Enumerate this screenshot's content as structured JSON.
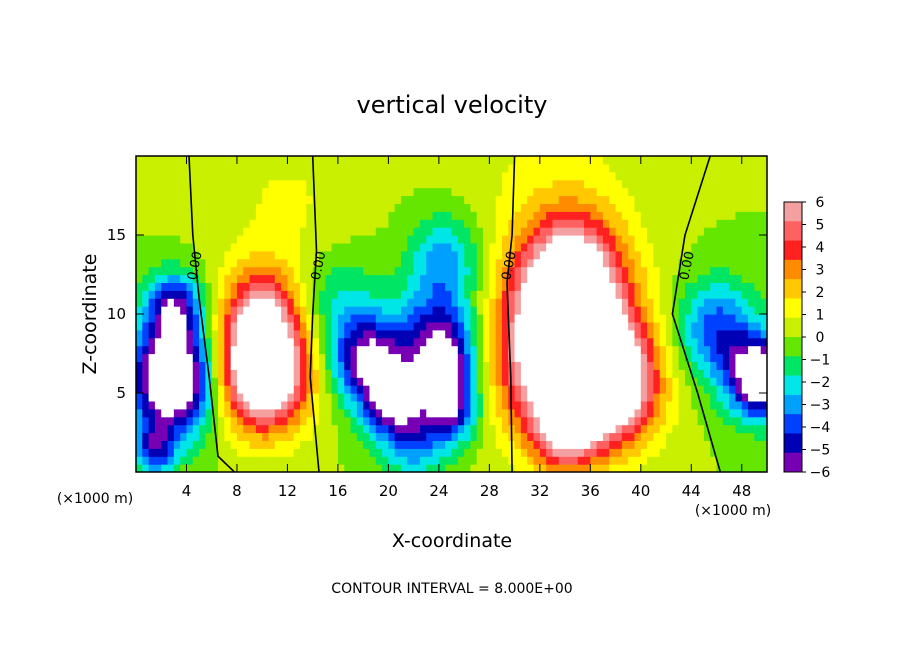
{
  "chart_data": {
    "type": "heatmap",
    "title": "vertical velocity",
    "xlabel": "X-coordinate",
    "ylabel": "Z-coordinate",
    "x_unit_label": "(×1000 m)",
    "x_unit_label_right": "(×1000 m)",
    "footer": "CONTOUR INTERVAL = 8.000E+00",
    "xlim": [
      0,
      50
    ],
    "ylim": [
      0,
      20
    ],
    "x_ticks": [
      "4",
      "8",
      "12",
      "16",
      "20",
      "24",
      "28",
      "32",
      "36",
      "40",
      "44",
      "48"
    ],
    "y_ticks": [
      "5",
      "10",
      "15"
    ],
    "colorbar": {
      "min": -6,
      "max": 6,
      "labels": [
        "6",
        "5",
        "4",
        "3",
        "2",
        "1",
        "0",
        "−1",
        "−2",
        "−3",
        "−4",
        "−5",
        "−6"
      ],
      "colors": [
        "#f5a0a0",
        "#ff6060",
        "#ff2020",
        "#ff8c00",
        "#ffc800",
        "#ffff00",
        "#c8f000",
        "#64e600",
        "#00e664",
        "#00e6e6",
        "#00a0ff",
        "#0040ff",
        "#0000b4",
        "#7800b4"
      ],
      "saturation_color": "#ffffff"
    },
    "cells": [
      {
        "x": 3,
        "z": 6,
        "w": -9.0,
        "s": 2.4
      },
      {
        "x": 3,
        "z": 10.5,
        "w": -5.0,
        "s": 1.5
      },
      {
        "x": 1.5,
        "z": 1.5,
        "w": -4.0,
        "s": 1.2
      },
      {
        "x": 10,
        "z": 6.5,
        "w": 10.0,
        "s": 2.6
      },
      {
        "x": 10,
        "z": 10.5,
        "w": 4.0,
        "s": 2.0
      },
      {
        "x": 16,
        "z": 10.5,
        "w": -2.0,
        "s": 2.5
      },
      {
        "x": 18.5,
        "z": 7.0,
        "w": -6.0,
        "s": 2.0
      },
      {
        "x": 20.5,
        "z": 4.5,
        "w": -5.0,
        "s": 1.6
      },
      {
        "x": 24,
        "z": 8.5,
        "w": -5.0,
        "s": 2.2
      },
      {
        "x": 24.5,
        "z": 13.5,
        "w": -3.0,
        "s": 2.0
      },
      {
        "x": 25,
        "z": 4.0,
        "w": -5.0,
        "s": 1.5
      },
      {
        "x": 24.5,
        "z": 6.5,
        "w": -4.0,
        "s": 1.5
      },
      {
        "x": 22,
        "z": 2.0,
        "w": -3.0,
        "s": 1.8
      },
      {
        "x": 34,
        "z": 7.5,
        "w": 10.0,
        "s": 3.6
      },
      {
        "x": 34.5,
        "z": 12.5,
        "w": 6.0,
        "s": 2.8
      },
      {
        "x": 38,
        "z": 5.5,
        "w": 6.0,
        "s": 2.5
      },
      {
        "x": 34,
        "z": 2.5,
        "w": 4.0,
        "s": 1.8
      },
      {
        "x": 33,
        "z": 18.0,
        "w": 1.0,
        "s": 5.0
      },
      {
        "x": 46,
        "z": 9.0,
        "w": -4.0,
        "s": 2.2
      },
      {
        "x": 49.5,
        "z": 6.0,
        "w": -8.0,
        "s": 1.8
      },
      {
        "x": 12,
        "z": 16.5,
        "w": 1.0,
        "s": 4.0
      }
    ],
    "contours": [
      {
        "label": "0.00",
        "points": [
          [
            4.2,
            20
          ],
          [
            4.5,
            15
          ],
          [
            5.0,
            11
          ],
          [
            5.8,
            6
          ],
          [
            6.5,
            1
          ],
          [
            7.8,
            0
          ]
        ]
      },
      {
        "label": "0.00",
        "points": [
          [
            14.0,
            20
          ],
          [
            14.3,
            14
          ],
          [
            14.0,
            10
          ],
          [
            13.8,
            6
          ],
          [
            14.5,
            0
          ]
        ]
      },
      {
        "label": "0.00",
        "points": [
          [
            30.0,
            20
          ],
          [
            29.8,
            15
          ],
          [
            29.4,
            12
          ],
          [
            29.7,
            6
          ],
          [
            29.8,
            0
          ]
        ]
      },
      {
        "label": "0.00",
        "points": [
          [
            45.5,
            20
          ],
          [
            43.5,
            15
          ],
          [
            42.5,
            10
          ],
          [
            44.5,
            5
          ],
          [
            46.3,
            0
          ]
        ]
      }
    ]
  }
}
